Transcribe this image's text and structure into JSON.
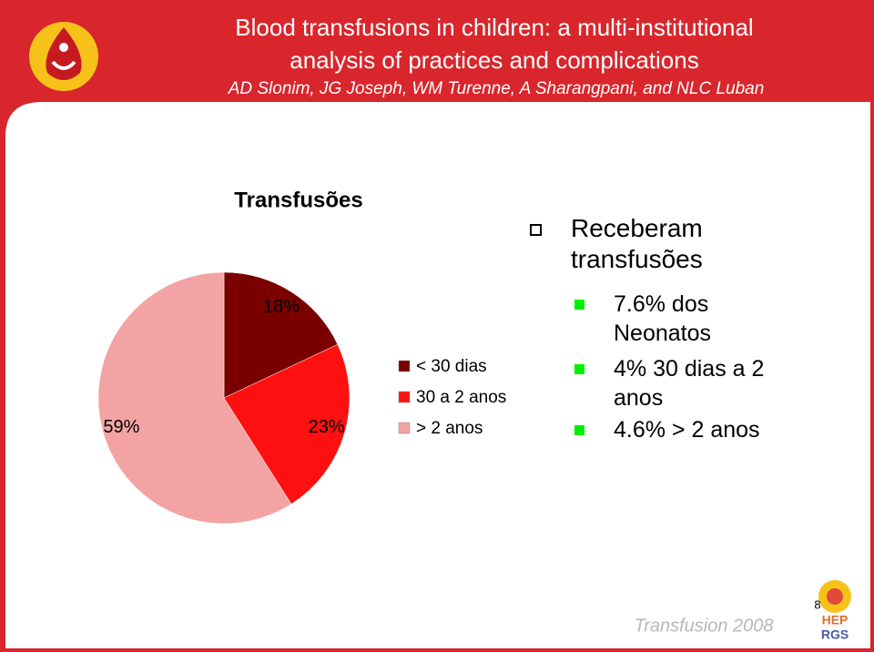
{
  "header": {
    "title_lines": [
      "Blood transfusions in children: a multi-institutional",
      "analysis of practices and complications"
    ],
    "authors": "AD Slonim, JG Joseph, WM Turenne, A Sharangpani, and NLC Luban"
  },
  "chart_data": {
    "type": "pie",
    "title": "Transfusões",
    "categories": [
      "< 30 dias",
      "30 a 2 anos",
      "> 2 anos"
    ],
    "values": [
      18,
      23,
      59
    ],
    "value_labels": [
      "18%",
      "23%",
      "59%"
    ],
    "colors": [
      "#7a0000",
      "#ff1010",
      "#f3a3a3"
    ],
    "legend": "right"
  },
  "bullets": {
    "main": "Receberam transfusões",
    "items": [
      "7.6% dos Neonatos",
      "4% 30 dias a 2 anos",
      "4.6% > 2 anos"
    ]
  },
  "footer": {
    "text": "Transfusion 2008",
    "page": "8",
    "logo": [
      "HEP",
      "RGS"
    ]
  }
}
